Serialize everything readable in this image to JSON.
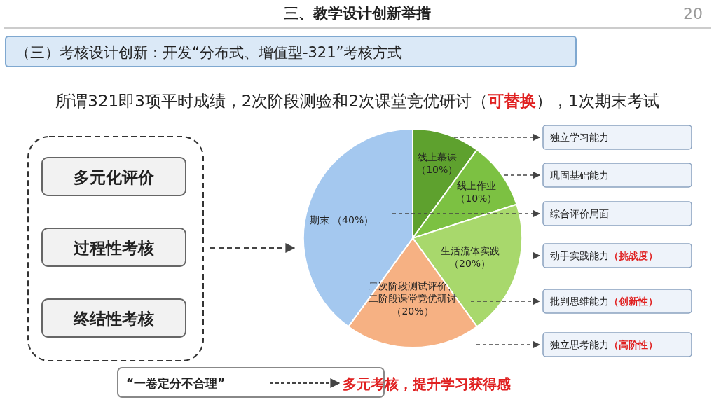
{
  "chart_data": {
    "type": "pie",
    "title": "三、教学设计创新举措",
    "categories": [
      "线上慕课",
      "线上作业",
      "生活流体实践",
      "二次阶段测试评价、二阶段课堂竞优研讨",
      "期末"
    ],
    "values": [
      10,
      10,
      20,
      20,
      40
    ],
    "value_labels": [
      "（10%）",
      "（10%）",
      "（20%）",
      "（20%）",
      "（40%）"
    ],
    "colors": [
      "#5ea12e",
      "#7cc142",
      "#a8d86c",
      "#f6b183",
      "#a4c8ef"
    ],
    "annotations": [
      "20",
      "（三）考核设计创新：开发“分布式、增值型-321”考核方式",
      "所谓321即3项平时成绩，2次阶段测验和2次课堂竞优研讨（",
      "可替换",
      "），1次期末考试",
      "多元化评价",
      "过程性考核",
      "终结性考核",
      "独立学习能力",
      "巩固基础能力",
      "综合评价局面",
      "动手实践能力",
      "（挑战度）",
      "批判思维能力",
      "（创新性）",
      "独立思考能力",
      "（高阶性）",
      "“一卷定分不合理”",
      "多元考核，提升学习获得感"
    ]
  }
}
